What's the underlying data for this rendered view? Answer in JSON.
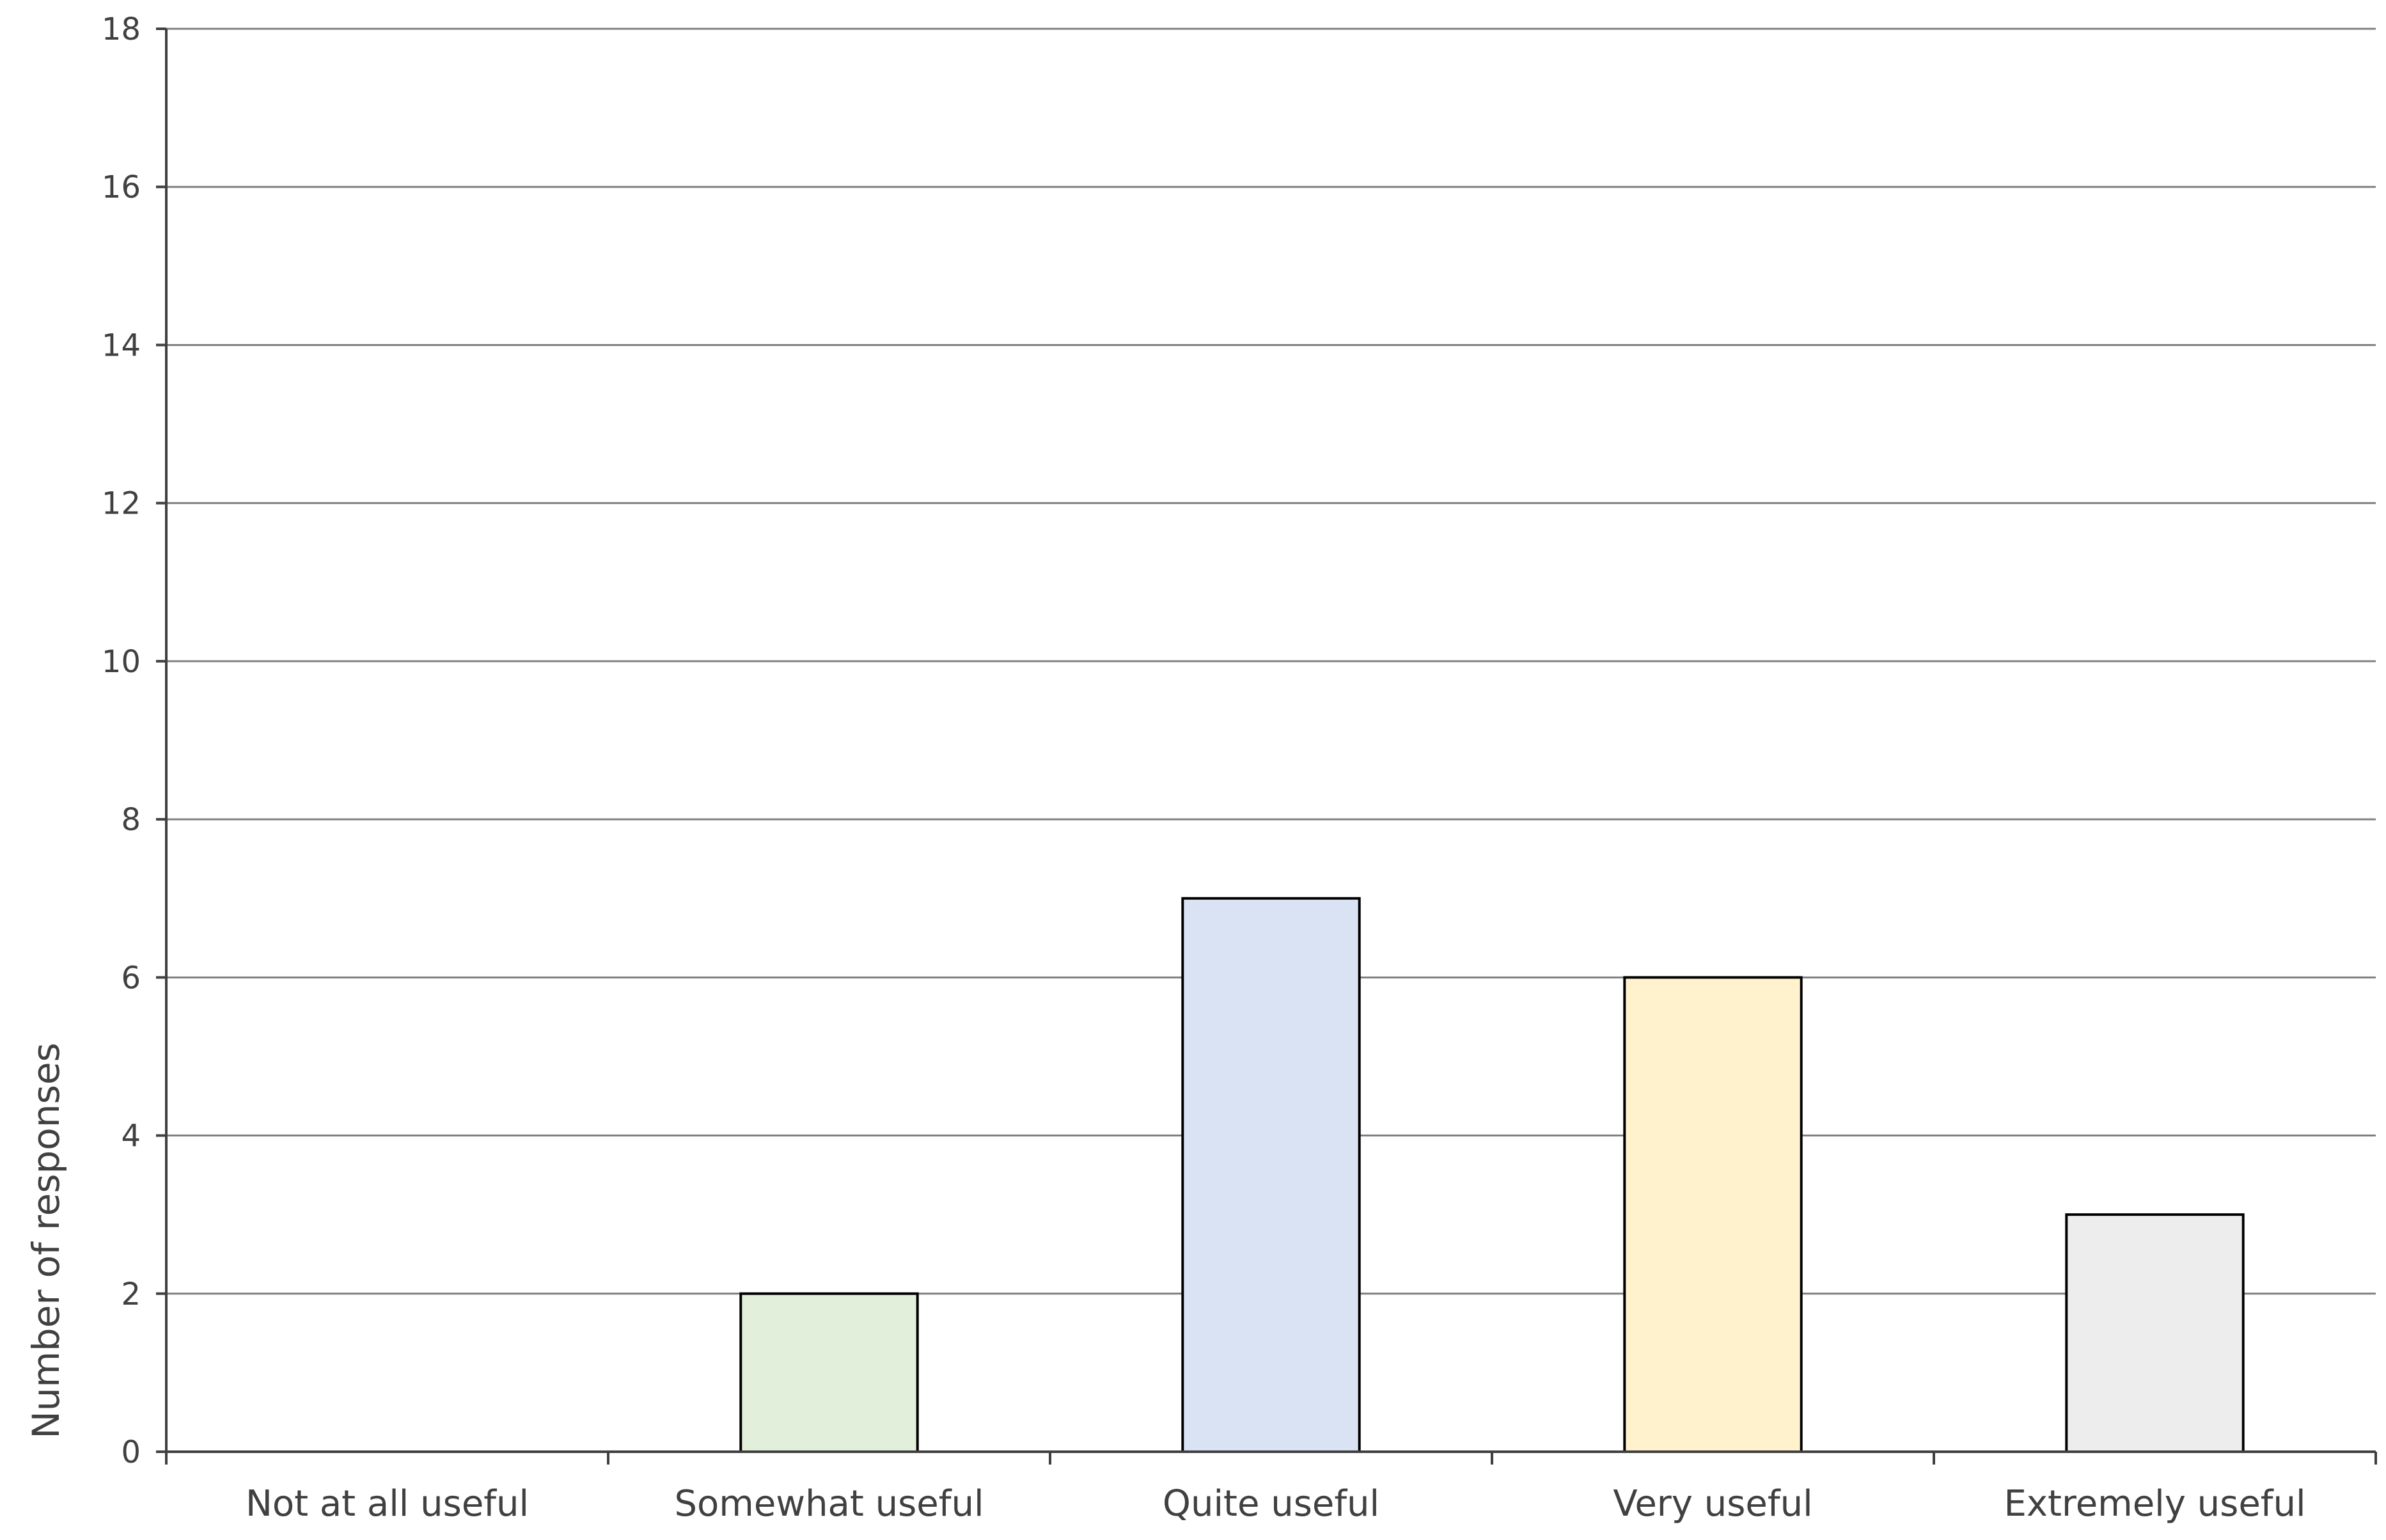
{
  "chart_data": {
    "type": "bar",
    "categories": [
      "Not at all useful",
      "Somewhat useful",
      "Quite useful",
      "Very useful",
      "Extremely useful"
    ],
    "values": [
      0,
      2,
      7,
      6,
      3
    ],
    "bar_colors": [
      "#ffffff",
      "#e2efda",
      "#dae3f3",
      "#fff2cc",
      "#ededed"
    ],
    "title": "",
    "xlabel": "",
    "ylabel": "Number of responses",
    "ylim": [
      0,
      18
    ],
    "yticks": [
      0,
      2,
      4,
      6,
      8,
      10,
      12,
      14,
      16,
      18
    ],
    "grid": true,
    "legend": "none"
  }
}
